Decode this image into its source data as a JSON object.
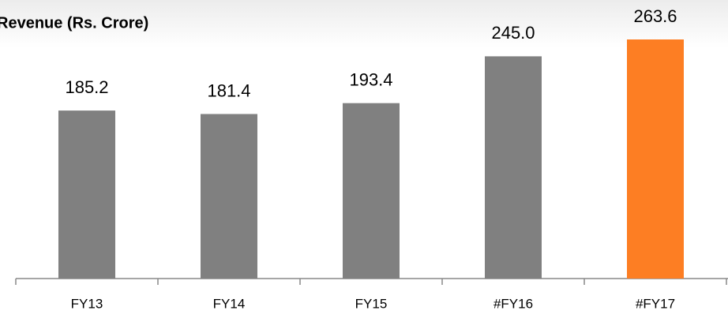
{
  "chart_data": {
    "type": "bar",
    "title": "Revenue (Rs. Crore)",
    "categories": [
      "FY13",
      "FY14",
      "FY15",
      "#FY16",
      "#FY17"
    ],
    "values": [
      185.2,
      181.4,
      193.4,
      245.0,
      263.6
    ],
    "value_labels": [
      "185.2",
      "181.4",
      "193.4",
      "245.0",
      "263.6"
    ],
    "colors": [
      "#808080",
      "#808080",
      "#808080",
      "#808080",
      "#fd7e23"
    ]
  }
}
